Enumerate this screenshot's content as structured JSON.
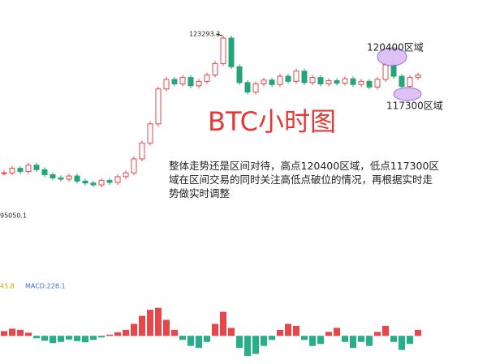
{
  "chart_data": {
    "type": "candlestick",
    "title": "BTC小时图",
    "high_label": "123293.3",
    "low_label": "95050.1",
    "zone_high": "120400区域",
    "zone_low": "117300区域",
    "commentary": "整体走势还是区间对待，高点120400区域，低点117300区域在区间交易的同时关注高低点破位的情况，再根据实时走势做实时调整",
    "ylim": [
      92000,
      129000
    ],
    "up_color": "#e8474a",
    "down_color": "#22a57a",
    "values": [
      101800,
      102500,
      102000,
      103000,
      102300,
      101500,
      101000,
      100800,
      101300,
      100500,
      100200,
      99900,
      100600,
      100300,
      101200,
      101800,
      104000,
      106500,
      109500,
      115000,
      116500,
      115800,
      116800,
      115500,
      116200,
      117200,
      119000,
      123000,
      118500,
      116000,
      114500,
      115800,
      116400,
      115700,
      117000,
      116200,
      117800,
      116000,
      116800,
      115800,
      116300,
      115900,
      116600,
      115700,
      116200,
      115300,
      116500,
      118800,
      117000,
      115400,
      116800,
      117200
    ],
    "macd": {
      "dif_label": "45.8",
      "label": "MACD:228.1",
      "ylim": [
        -700,
        1400
      ],
      "pos_color": "#e8474a",
      "neg_color": "#26b08a",
      "values": [
        120,
        180,
        150,
        80,
        -60,
        -120,
        -180,
        -150,
        -90,
        -130,
        -160,
        -100,
        -40,
        30,
        90,
        150,
        300,
        500,
        650,
        700,
        400,
        150,
        -100,
        -250,
        -300,
        -150,
        300,
        600,
        200,
        -300,
        -500,
        -450,
        -250,
        -100,
        150,
        300,
        250,
        -100,
        -250,
        -200,
        100,
        200,
        -150,
        -300,
        -150,
        -250,
        100,
        250,
        -150,
        -350,
        -200,
        150
      ]
    }
  }
}
